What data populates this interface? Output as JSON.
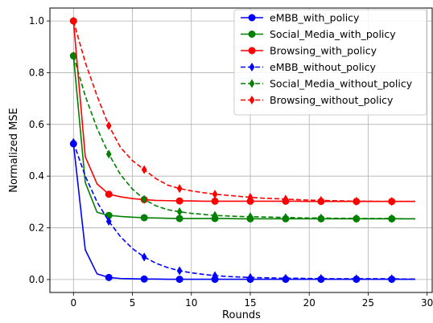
{
  "chart_data": {
    "type": "line",
    "xlabel": "Rounds",
    "ylabel": "Normalized MSE",
    "xlim": [
      -2,
      30.5
    ],
    "ylim": [
      -0.05,
      1.05
    ],
    "xticks": [
      0,
      5,
      10,
      15,
      20,
      25,
      30
    ],
    "yticks": [
      0.0,
      0.2,
      0.4,
      0.6,
      0.8,
      1.0
    ],
    "xtick_labels": [
      "0",
      "5",
      "10",
      "15",
      "20",
      "25",
      "30"
    ],
    "ytick_labels": [
      "0.0",
      "0.2",
      "0.4",
      "0.6",
      "0.8",
      "1.0"
    ],
    "grid": true,
    "legend_position": "top-right",
    "series": [
      {
        "name": "eMBB_with_policy",
        "color": "#0000ff",
        "dash": "solid",
        "marker": "circle",
        "x": [
          0,
          1,
          2,
          3,
          4,
          5,
          6,
          7,
          8,
          9,
          10,
          11,
          12,
          13,
          14,
          15,
          16,
          17,
          18,
          19,
          20,
          21,
          22,
          23,
          24,
          25,
          26,
          27,
          28,
          29
        ],
        "y": [
          0.525,
          0.115,
          0.022,
          0.008,
          0.004,
          0.003,
          0.002,
          0.002,
          0.001,
          0.001,
          0.001,
          0.001,
          0.001,
          0.001,
          0.001,
          0.001,
          0.001,
          0.001,
          0.001,
          0.001,
          0.001,
          0.001,
          0.001,
          0.001,
          0.001,
          0.001,
          0.001,
          0.001,
          0.001,
          0.001
        ],
        "marker_x": [
          0,
          3,
          6,
          9,
          12,
          15,
          18,
          21,
          24,
          27
        ]
      },
      {
        "name": "Social_Media_with_policy",
        "color": "#008000",
        "dash": "solid",
        "marker": "circle",
        "x": [
          0,
          1,
          2,
          3,
          4,
          5,
          6,
          7,
          8,
          9,
          10,
          11,
          12,
          13,
          14,
          15,
          16,
          17,
          18,
          19,
          20,
          21,
          22,
          23,
          24,
          25,
          26,
          27,
          28,
          29
        ],
        "y": [
          0.865,
          0.375,
          0.26,
          0.248,
          0.244,
          0.241,
          0.239,
          0.238,
          0.237,
          0.236,
          0.236,
          0.236,
          0.236,
          0.236,
          0.235,
          0.235,
          0.235,
          0.235,
          0.235,
          0.235,
          0.235,
          0.235,
          0.235,
          0.235,
          0.235,
          0.235,
          0.235,
          0.235,
          0.235,
          0.235
        ],
        "marker_x": [
          0,
          3,
          6,
          9,
          12,
          15,
          18,
          21,
          24,
          27
        ]
      },
      {
        "name": "Browsing_with_policy",
        "color": "#ff0000",
        "dash": "solid",
        "marker": "circle",
        "x": [
          0,
          1,
          2,
          3,
          4,
          5,
          6,
          7,
          8,
          9,
          10,
          11,
          12,
          13,
          14,
          15,
          16,
          17,
          18,
          19,
          20,
          21,
          22,
          23,
          24,
          25,
          26,
          27,
          28,
          29
        ],
        "y": [
          1.0,
          0.475,
          0.37,
          0.33,
          0.32,
          0.313,
          0.309,
          0.306,
          0.305,
          0.304,
          0.304,
          0.303,
          0.303,
          0.303,
          0.303,
          0.303,
          0.303,
          0.303,
          0.303,
          0.303,
          0.302,
          0.302,
          0.302,
          0.302,
          0.302,
          0.302,
          0.302,
          0.302,
          0.302,
          0.302
        ],
        "marker_x": [
          0,
          3,
          6,
          9,
          12,
          15,
          18,
          21,
          24,
          27
        ]
      },
      {
        "name": "eMBB_without_policy",
        "color": "#0000ff",
        "dash": "dashed",
        "marker": "diamond",
        "x": [
          0,
          1,
          2,
          3,
          4,
          5,
          6,
          7,
          8,
          9,
          10,
          11,
          12,
          13,
          14,
          15,
          16,
          17,
          18,
          19,
          20,
          21,
          22,
          23,
          24,
          25,
          26,
          27,
          28,
          29
        ],
        "y": [
          0.53,
          0.4,
          0.3,
          0.225,
          0.165,
          0.12,
          0.087,
          0.063,
          0.046,
          0.034,
          0.026,
          0.02,
          0.015,
          0.012,
          0.01,
          0.008,
          0.007,
          0.006,
          0.005,
          0.005,
          0.004,
          0.004,
          0.003,
          0.003,
          0.003,
          0.003,
          0.003,
          0.003,
          0.002,
          0.002
        ],
        "marker_x": [
          0,
          3,
          6,
          9,
          12,
          15,
          18,
          21,
          24,
          27
        ]
      },
      {
        "name": "Social_Media_without_policy",
        "color": "#008000",
        "dash": "dashed",
        "marker": "diamond",
        "x": [
          0,
          1,
          2,
          3,
          4,
          5,
          6,
          7,
          8,
          9,
          10,
          11,
          12,
          13,
          14,
          15,
          16,
          17,
          18,
          19,
          20,
          21,
          22,
          23,
          24,
          25,
          26,
          27,
          28,
          29
        ],
        "y": [
          0.865,
          0.71,
          0.585,
          0.485,
          0.405,
          0.35,
          0.31,
          0.285,
          0.27,
          0.262,
          0.256,
          0.252,
          0.248,
          0.246,
          0.244,
          0.243,
          0.242,
          0.241,
          0.24,
          0.239,
          0.238,
          0.238,
          0.237,
          0.237,
          0.236,
          0.236,
          0.236,
          0.236,
          0.235,
          0.235
        ],
        "marker_x": [
          0,
          3,
          6,
          9,
          12,
          15,
          18,
          21,
          24,
          27
        ]
      },
      {
        "name": "Browsing_without_policy",
        "color": "#ff0000",
        "dash": "dashed",
        "marker": "diamond",
        "x": [
          0,
          1,
          2,
          3,
          4,
          5,
          6,
          7,
          8,
          9,
          10,
          11,
          12,
          13,
          14,
          15,
          16,
          17,
          18,
          19,
          20,
          21,
          22,
          23,
          24,
          25,
          26,
          27,
          28,
          29
        ],
        "y": [
          1.0,
          0.84,
          0.71,
          0.595,
          0.51,
          0.46,
          0.425,
          0.39,
          0.365,
          0.352,
          0.343,
          0.336,
          0.33,
          0.326,
          0.322,
          0.318,
          0.315,
          0.313,
          0.311,
          0.309,
          0.307,
          0.306,
          0.305,
          0.304,
          0.303,
          0.303,
          0.302,
          0.302,
          0.302,
          0.302
        ],
        "marker_x": [
          0,
          3,
          6,
          9,
          12,
          15,
          18,
          21,
          24,
          27
        ]
      }
    ]
  }
}
